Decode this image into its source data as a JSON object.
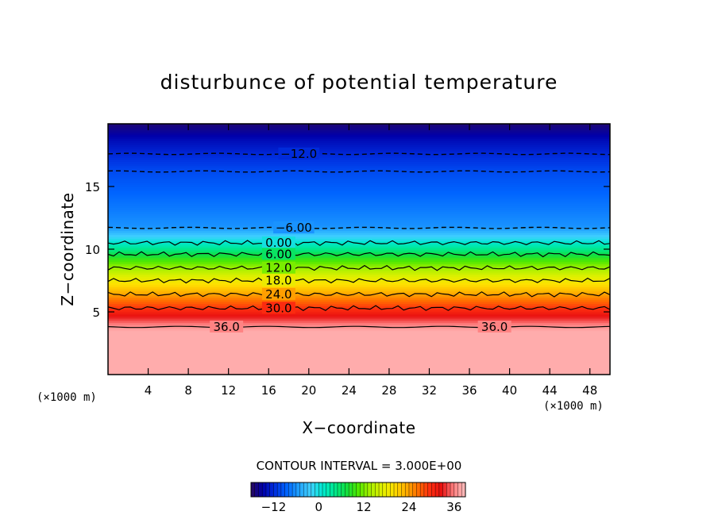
{
  "chart_data": {
    "type": "heatmap",
    "title": "disturbunce of potential temperature",
    "xlabel": "X−coordinate",
    "ylabel": "Z−coordinate",
    "x_unit": "(×1000 m)",
    "y_unit": "(×1000 m)",
    "xlim": [
      0,
      50
    ],
    "ylim": [
      0,
      20
    ],
    "x_ticks": [
      {
        "value": 4,
        "label": "4"
      },
      {
        "value": 8,
        "label": "8"
      },
      {
        "value": 12,
        "label": "12"
      },
      {
        "value": 16,
        "label": "16"
      },
      {
        "value": 20,
        "label": "20"
      },
      {
        "value": 24,
        "label": "24"
      },
      {
        "value": 28,
        "label": "28"
      },
      {
        "value": 32,
        "label": "32"
      },
      {
        "value": 36,
        "label": "36"
      },
      {
        "value": 40,
        "label": "40"
      },
      {
        "value": 44,
        "label": "44"
      },
      {
        "value": 48,
        "label": "48"
      }
    ],
    "y_ticks": [
      {
        "value": 5,
        "label": "5"
      },
      {
        "value": 10,
        "label": "10"
      },
      {
        "value": 15,
        "label": "15"
      }
    ],
    "contour_interval_text": "CONTOUR INTERVAL = 3.000E+00",
    "value_range": [
      -18,
      39
    ],
    "colorbar_ticks": [
      {
        "value": -12,
        "label": "−12"
      },
      {
        "value": 0,
        "label": "0"
      },
      {
        "value": 12,
        "label": "12"
      },
      {
        "value": 24,
        "label": "24"
      },
      {
        "value": 36,
        "label": "36"
      }
    ],
    "colorbar_colors": [
      "#2a0a5e",
      "#0000aa",
      "#0030e0",
      "#0064ff",
      "#20a0ff",
      "#40d0ff",
      "#00e8d0",
      "#00e890",
      "#10e040",
      "#50e800",
      "#a8f000",
      "#e0f000",
      "#ffe000",
      "#ffb000",
      "#ff7000",
      "#ff3010",
      "#e81010",
      "#ff8080",
      "#ffc0c0"
    ],
    "profile": [
      {
        "z": 0,
        "value": 38
      },
      {
        "z": 3.5,
        "value": 38
      },
      {
        "z": 4.0,
        "value": 36
      },
      {
        "z": 4.8,
        "value": 32
      },
      {
        "z": 5.6,
        "value": 28
      },
      {
        "z": 6.4,
        "value": 24
      },
      {
        "z": 7.2,
        "value": 20
      },
      {
        "z": 8.0,
        "value": 16
      },
      {
        "z": 8.8,
        "value": 12
      },
      {
        "z": 9.6,
        "value": 7
      },
      {
        "z": 10.4,
        "value": 2
      },
      {
        "z": 11.0,
        "value": -2
      },
      {
        "z": 11.8,
        "value": -6
      },
      {
        "z": 14.0,
        "value": -8
      },
      {
        "z": 16.2,
        "value": -10
      },
      {
        "z": 17.5,
        "value": -12
      },
      {
        "z": 18.7,
        "value": -14
      },
      {
        "z": 20.0,
        "value": -17
      }
    ],
    "contours": [
      {
        "label": "−12.0",
        "value": -12,
        "z": 17.6,
        "dashed": true,
        "label_x": 19.0
      },
      {
        "label": "",
        "value": -9,
        "z": 16.2,
        "dashed": true
      },
      {
        "label": "−6.00",
        "value": -6,
        "z": 11.7,
        "dashed": true,
        "label_x": 18.5
      },
      {
        "label": "0.00",
        "value": 0,
        "z": 10.5,
        "dashed": false,
        "label_x": 17.0
      },
      {
        "label": "6.00",
        "value": 6,
        "z": 9.6,
        "dashed": false,
        "label_x": 17.0
      },
      {
        "label": "12.0",
        "value": 12,
        "z": 8.5,
        "dashed": false,
        "label_x": 17.0
      },
      {
        "label": "18.0",
        "value": 18,
        "z": 7.5,
        "dashed": false,
        "label_x": 17.0
      },
      {
        "label": "24.0",
        "value": 24,
        "z": 6.4,
        "dashed": false,
        "label_x": 17.0
      },
      {
        "label": "30.0",
        "value": 30,
        "z": 5.3,
        "dashed": false,
        "label_x": 17.0
      },
      {
        "label": "36.0",
        "value": 36,
        "z": 3.8,
        "dashed": false,
        "label_x": 11.8,
        "label_x2": 38.5
      }
    ],
    "grid": false
  }
}
